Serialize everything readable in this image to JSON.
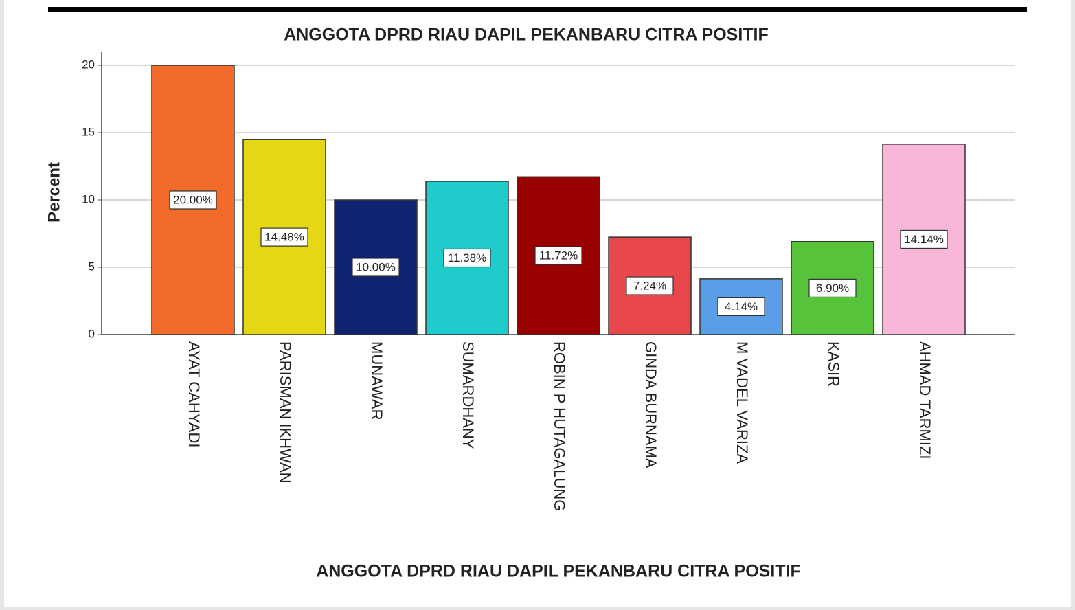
{
  "chart_data": {
    "type": "bar",
    "title": "ANGGOTA DPRD RIAU DAPIL PEKANBARU CITRA POSITIF",
    "x_label": "ANGGOTA DPRD RIAU DAPIL PEKANBARU CITRA POSITIF",
    "y_label": "Percent",
    "categories": [
      "AYAT CAHYADI",
      "PARISMAN IKHWAN",
      "MUNAWAR",
      "SUMARDHANY",
      "ROBIN P HUTAGALUNG",
      "GINDA BURNAMA",
      "M VADEL VARIZA",
      "KASIR",
      "AHMAD TARMIZI"
    ],
    "values": [
      20.0,
      14.48,
      10.0,
      11.38,
      11.72,
      7.24,
      4.14,
      6.9,
      14.14
    ],
    "value_labels": [
      "20.00%",
      "14.48%",
      "10.00%",
      "11.38%",
      "11.72%",
      "7.24%",
      "4.14%",
      "6.90%",
      "14.14%"
    ],
    "colors": [
      "#f26b2a",
      "#e5d714",
      "#0e2470",
      "#1fcbcb",
      "#990000",
      "#e8484b",
      "#5a9ee8",
      "#57c33a",
      "#f8b6d9"
    ],
    "ylim": [
      0,
      21
    ],
    "yticks": [
      0,
      5,
      10,
      15,
      20
    ],
    "grid": true
  }
}
